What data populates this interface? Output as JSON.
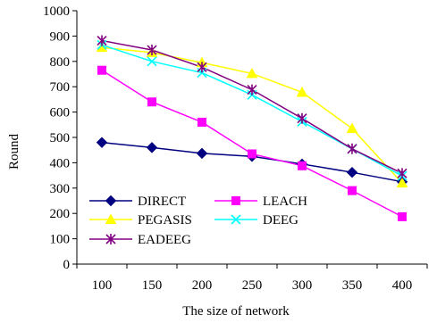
{
  "chart_data": {
    "type": "line",
    "title": "",
    "xlabel": "The size of network",
    "ylabel": "Round",
    "categories": [
      "100",
      "150",
      "200",
      "250",
      "300",
      "350",
      "400"
    ],
    "ylim": [
      0,
      1000
    ],
    "yticks": [
      0,
      100,
      200,
      300,
      400,
      500,
      600,
      700,
      800,
      900,
      1000
    ],
    "grid": false,
    "legend_position": "bottom-left, inside plot",
    "series": [
      {
        "name": "DIRECT",
        "color": "#000080",
        "marker": "diamond",
        "values": [
          480,
          460,
          437,
          425,
          395,
          362,
          325
        ]
      },
      {
        "name": "LEACH",
        "color": "#ff00ff",
        "marker": "square",
        "values": [
          765,
          640,
          560,
          435,
          388,
          290,
          187
        ]
      },
      {
        "name": "PEGASIS",
        "color": "#ffff00",
        "marker": "triangle",
        "values": [
          855,
          835,
          795,
          752,
          678,
          535,
          320
        ]
      },
      {
        "name": "DEEG",
        "color": "#00ffff",
        "marker": "x",
        "values": [
          865,
          800,
          755,
          668,
          562,
          455,
          348
        ]
      },
      {
        "name": "EADEEG",
        "color": "#800080",
        "marker": "star",
        "values": [
          882,
          845,
          777,
          688,
          575,
          455,
          358
        ]
      }
    ]
  }
}
